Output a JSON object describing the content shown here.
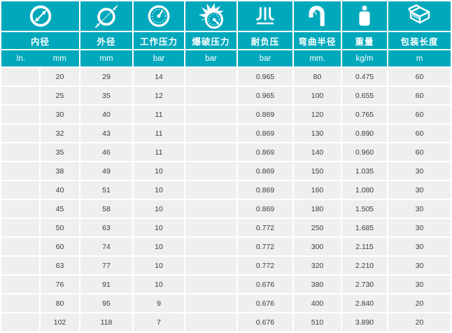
{
  "colors": {
    "header_teal": "#00A8BC",
    "row_background": "#EFEFEF",
    "row_text": "#3C3C3C",
    "gap_white": "#FFFFFF"
  },
  "table": {
    "columns": [
      {
        "label": "内径",
        "icon": "inner-diameter-icon",
        "units": [
          "In.",
          "mm"
        ]
      },
      {
        "label": "外径",
        "icon": "outer-diameter-icon",
        "unit": "mm"
      },
      {
        "label": "工作压力",
        "icon": "pressure-gauge-icon",
        "unit": "bar"
      },
      {
        "label": "爆破压力",
        "icon": "burst-pressure-icon",
        "unit": "bar"
      },
      {
        "label": "耐负压",
        "icon": "vacuum-icon",
        "unit": "bar"
      },
      {
        "label": "弯曲半径",
        "icon": "bend-radius-icon",
        "unit": "mm."
      },
      {
        "label": "重量",
        "icon": "weight-icon",
        "unit": "kg/m"
      },
      {
        "label": "包装长度",
        "icon": "packing-box-icon",
        "unit": "m"
      }
    ],
    "rows": [
      [
        "",
        "20",
        "29",
        "14",
        "",
        "0.965",
        "80",
        "0.475",
        "60"
      ],
      [
        "",
        "25",
        "35",
        "12",
        "",
        "0.965",
        "100",
        "0.655",
        "60"
      ],
      [
        "",
        "30",
        "40",
        "11",
        "",
        "0.869",
        "120",
        "0.765",
        "60"
      ],
      [
        "",
        "32",
        "43",
        "11",
        "",
        "0.869",
        "130",
        "0.890",
        "60"
      ],
      [
        "",
        "35",
        "46",
        "11",
        "",
        "0.869",
        "140",
        "0.960",
        "60"
      ],
      [
        "",
        "38",
        "49",
        "10",
        "",
        "0.869",
        "150",
        "1.035",
        "30"
      ],
      [
        "",
        "40",
        "51",
        "10",
        "",
        "0.869",
        "160",
        "1.080",
        "30"
      ],
      [
        "",
        "45",
        "58",
        "10",
        "",
        "0.869",
        "180",
        "1.505",
        "30"
      ],
      [
        "",
        "50",
        "63",
        "10",
        "",
        "0.772",
        "250",
        "1.685",
        "30"
      ],
      [
        "",
        "60",
        "74",
        "10",
        "",
        "0.772",
        "300",
        "2.115",
        "30"
      ],
      [
        "",
        "63",
        "77",
        "10",
        "",
        "0.772",
        "320",
        "2.210",
        "30"
      ],
      [
        "",
        "76",
        "91",
        "10",
        "",
        "0.676",
        "380",
        "2.730",
        "30"
      ],
      [
        "",
        "80",
        "95",
        "9",
        "",
        "0.676",
        "400",
        "2.840",
        "20"
      ],
      [
        "",
        "102",
        "118",
        "7",
        "",
        "0.676",
        "510",
        "3.890",
        "20"
      ]
    ]
  }
}
